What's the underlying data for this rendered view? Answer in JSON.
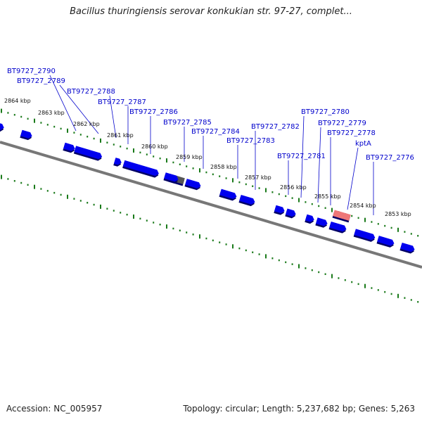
{
  "title": "Bacillus thuringiensis serovar konkukian str. 97-27, complet...",
  "footer": {
    "accession": "Accession: NC_005957",
    "summary": "Topology: circular; Length: 5,237,682 bp; Genes: 5,263"
  },
  "colors": {
    "gene": "#0000ee",
    "gene_shadow": "#000066",
    "highlight": "#ee7777",
    "pseudo": "#555555",
    "ticks": "#1a7a1a",
    "backbone": "#777777",
    "label": "#0000cc"
  },
  "gene_labels": [
    "BT9727_2790",
    "BT9727_2789",
    "BT9727_2788",
    "BT9727_2787",
    "BT9727_2786",
    "BT9727_2785",
    "BT9727_2784",
    "BT9727_2783",
    "BT9727_2782",
    "BT9727_2781",
    "BT9727_2780",
    "BT9727_2779",
    "BT9727_2778",
    "kptA",
    "BT9727_2776"
  ],
  "kbp_labels": [
    "2864 kbp",
    "2863 kbp",
    "2862 kbp",
    "2861 kbp",
    "2860 kbp",
    "2859 kbp",
    "2858 kbp",
    "2857 kbp",
    "2856 kbp",
    "2855 kbp",
    "2854 kbp",
    "2853 kbp"
  ]
}
